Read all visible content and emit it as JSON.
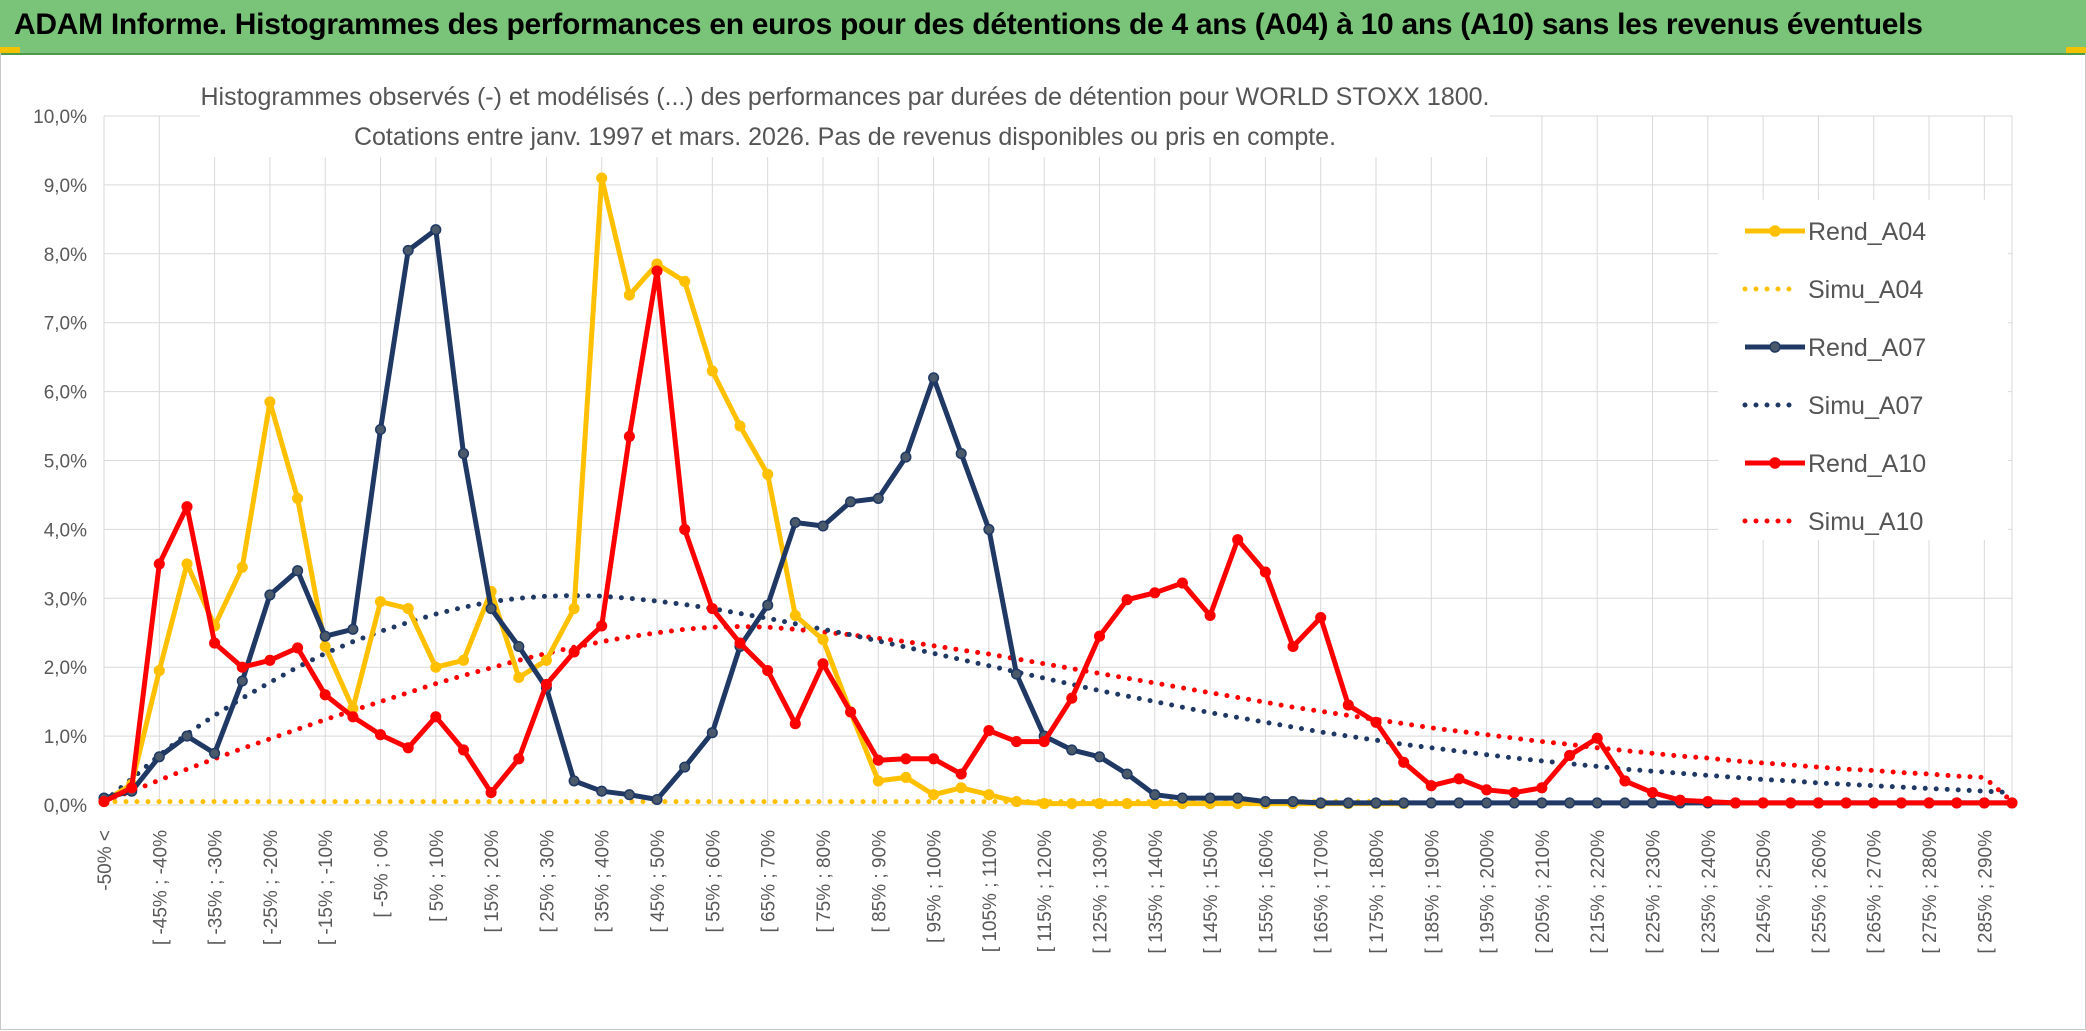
{
  "header": {
    "title": "ADAM Informe. Histogrammes des performances en euros pour des détentions de 4 ans (A04) à 10 ans (A10) sans les revenus éventuels"
  },
  "colors": {
    "header_bg": "#7ac47a",
    "a04": "#ffc000",
    "a07": "#1f3864",
    "a10": "#ff0000",
    "grid": "#d9d9d9"
  },
  "chart_data": {
    "type": "line",
    "title_line1": "Histogrammes observés (-) et modélisés (...) des performances par durées de détention pour WORLD STOXX 1800.",
    "title_line2": "Cotations entre janv. 1997 et mars. 2026. Pas de revenus disponibles ou pris en compte.",
    "xlabel": "",
    "ylabel": "",
    "ylim": [
      0,
      10
    ],
    "yticks": [
      "0,0%",
      "1,0%",
      "2,0%",
      "3,0%",
      "4,0%",
      "5,0%",
      "6,0%",
      "7,0%",
      "8,0%",
      "9,0%",
      "10,0%"
    ],
    "grid": true,
    "legend_position": "right",
    "x_tick_labels": [
      "-50% <",
      "[ -45% ; -40%",
      "[ -35% ; -30%",
      "[ -25% ; -20%",
      "[ -15% ; -10%",
      "[ -5% ; 0%",
      "[ 5% ; 10%",
      "[ 15% ; 20%",
      "[ 25% ; 30%",
      "[ 35% ; 40%",
      "[ 45% ; 50%",
      "[ 55% ; 60%",
      "[ 65% ; 70%",
      "[ 75% ; 80%",
      "[ 85% ; 90%",
      "[ 95% ; 100%",
      "[ 105% ; 110%",
      "[ 115% ; 120%",
      "[ 125% ; 130%",
      "[ 135% ; 140%",
      "[ 145% ; 150%",
      "[ 155% ; 160%",
      "[ 165% ; 170%",
      "[ 175% ; 180%",
      "[ 185% ; 190%",
      "[ 195% ; 200%",
      "[ 205% ; 210%",
      "[ 215% ; 220%",
      "[ 225% ; 230%",
      "[ 235% ; 240%",
      "[ 245% ; 250%",
      "[ 255% ; 260%",
      "[ 265% ; 270%",
      "[ 275% ; 280%",
      "[ 285% ; 290%"
    ],
    "x_count": 70,
    "series": [
      {
        "name": "Rend_A04",
        "style": "solid",
        "color": "#ffc000",
        "x": [
          0,
          1,
          2,
          3,
          4,
          5,
          6,
          7,
          8,
          9,
          10,
          11,
          12,
          13,
          14,
          15,
          16,
          17,
          18,
          19,
          20,
          21,
          22,
          23,
          24,
          25,
          26,
          27,
          28,
          29,
          30,
          31,
          32,
          33,
          34,
          35,
          36,
          37,
          38,
          39,
          40,
          41,
          42,
          43,
          44,
          45,
          46,
          47
        ],
        "values": [
          0.05,
          0.3,
          1.95,
          3.5,
          2.6,
          3.45,
          5.85,
          4.45,
          2.3,
          1.4,
          2.95,
          2.85,
          2.0,
          2.1,
          3.1,
          1.85,
          2.1,
          2.85,
          9.1,
          7.4,
          7.85,
          7.6,
          6.3,
          5.5,
          4.8,
          2.75,
          2.4,
          1.35,
          0.35,
          0.4,
          0.15,
          0.25,
          0.15,
          0.05,
          0.02,
          0.02,
          0.02,
          0.02,
          0.02,
          0.02,
          0.02,
          0.02,
          0.02,
          0.02,
          0.02,
          0.02,
          0.02,
          0.02
        ]
      },
      {
        "name": "Simu_A04",
        "style": "dotted",
        "color": "#ffc000",
        "x": [
          0,
          47
        ],
        "values": [
          0.05,
          0.05
        ]
      },
      {
        "name": "Rend_A07",
        "style": "solid",
        "color": "#1f3864",
        "x": [
          0,
          1,
          2,
          3,
          4,
          5,
          6,
          7,
          8,
          9,
          10,
          11,
          12,
          13,
          14,
          15,
          16,
          17,
          18,
          19,
          20,
          21,
          22,
          23,
          24,
          25,
          26,
          27,
          28,
          29,
          30,
          31,
          32,
          33,
          34,
          35,
          36,
          37,
          38,
          39,
          40,
          41,
          42,
          43,
          44,
          45,
          46,
          47,
          48,
          49,
          50,
          51,
          52,
          53,
          54,
          55,
          56,
          57,
          58,
          59,
          60,
          61,
          62,
          63,
          64,
          65,
          66,
          67,
          68,
          69
        ],
        "values": [
          0.1,
          0.2,
          0.7,
          1.0,
          0.75,
          1.8,
          3.05,
          3.4,
          2.45,
          2.55,
          5.45,
          8.05,
          8.35,
          5.1,
          2.85,
          2.3,
          1.7,
          0.35,
          0.2,
          0.15,
          0.08,
          0.55,
          1.05,
          2.3,
          2.9,
          4.1,
          4.05,
          4.4,
          4.45,
          5.05,
          6.2,
          5.1,
          4.0,
          1.9,
          1.0,
          0.8,
          0.7,
          0.45,
          0.15,
          0.1,
          0.1,
          0.1,
          0.05,
          0.05,
          0.03,
          0.03,
          0.03,
          0.03,
          0.03,
          0.03,
          0.03,
          0.03,
          0.03,
          0.03,
          0.03,
          0.03,
          0.03,
          0.03,
          0.03,
          0.03,
          0.03,
          0.03,
          0.03,
          0.03,
          0.03,
          0.03,
          0.03,
          0.03,
          0.03,
          0.03
        ]
      },
      {
        "name": "Simu_A07",
        "style": "dotted",
        "color": "#1f3864",
        "x": [
          0,
          1,
          2,
          3,
          4,
          5,
          6,
          7,
          8,
          9,
          10,
          11,
          12,
          13,
          14,
          15,
          16,
          17,
          18,
          19,
          20,
          21,
          22,
          23,
          24,
          25,
          26,
          27,
          28,
          29,
          30,
          31,
          32,
          33,
          34,
          35,
          36,
          37,
          38,
          39,
          40,
          41,
          42,
          43,
          44,
          45,
          46,
          47,
          48,
          49,
          50,
          51,
          52,
          53,
          54,
          55,
          56,
          57,
          58,
          59,
          60,
          61,
          62,
          63,
          64,
          65,
          66,
          67,
          68,
          69
        ],
        "values": [
          0.05,
          0.38,
          0.72,
          1.03,
          1.3,
          1.55,
          1.78,
          2.0,
          2.2,
          2.37,
          2.52,
          2.65,
          2.77,
          2.87,
          2.95,
          3.0,
          3.03,
          3.04,
          3.03,
          3.0,
          2.96,
          2.91,
          2.85,
          2.78,
          2.71,
          2.63,
          2.55,
          2.47,
          2.38,
          2.29,
          2.2,
          2.11,
          2.02,
          1.93,
          1.84,
          1.75,
          1.66,
          1.58,
          1.5,
          1.42,
          1.34,
          1.27,
          1.2,
          1.13,
          1.06,
          1.0,
          0.94,
          0.88,
          0.83,
          0.78,
          0.73,
          0.68,
          0.64,
          0.6,
          0.56,
          0.52,
          0.49,
          0.46,
          0.43,
          0.4,
          0.37,
          0.35,
          0.32,
          0.3,
          0.28,
          0.26,
          0.24,
          0.22,
          0.2,
          0.18
        ]
      },
      {
        "name": "Rend_A10",
        "style": "solid",
        "color": "#ff0000",
        "x": [
          0,
          1,
          2,
          3,
          4,
          5,
          6,
          7,
          8,
          9,
          10,
          11,
          12,
          13,
          14,
          15,
          16,
          17,
          18,
          19,
          20,
          21,
          22,
          23,
          24,
          25,
          26,
          27,
          28,
          29,
          30,
          31,
          32,
          33,
          34,
          35,
          36,
          37,
          38,
          39,
          40,
          41,
          42,
          43,
          44,
          45,
          46,
          47,
          48,
          49,
          50,
          51,
          52,
          53,
          54,
          55,
          56,
          57,
          58,
          59,
          60,
          61,
          62,
          63,
          64,
          65,
          66,
          67,
          68,
          69
        ],
        "values": [
          0.05,
          0.25,
          3.5,
          4.33,
          2.35,
          2.0,
          2.1,
          2.28,
          1.6,
          1.28,
          1.02,
          0.83,
          1.28,
          0.8,
          0.18,
          0.67,
          1.75,
          2.22,
          2.6,
          5.35,
          7.75,
          4.0,
          2.85,
          2.35,
          1.95,
          1.18,
          2.05,
          1.35,
          0.65,
          0.67,
          0.67,
          0.45,
          1.08,
          0.92,
          0.92,
          1.55,
          2.45,
          2.98,
          3.08,
          3.22,
          2.75,
          3.85,
          3.38,
          2.3,
          2.72,
          1.45,
          1.2,
          0.62,
          0.28,
          0.38,
          0.22,
          0.18,
          0.25,
          0.72,
          0.97,
          0.35,
          0.18,
          0.07,
          0.05,
          0.03,
          0.03,
          0.03,
          0.03,
          0.03,
          0.03,
          0.03,
          0.03,
          0.03,
          0.03,
          0.03
        ]
      },
      {
        "name": "Simu_A10",
        "style": "dotted",
        "color": "#ff0000",
        "x": [
          0,
          1,
          2,
          3,
          4,
          5,
          6,
          7,
          8,
          9,
          10,
          11,
          12,
          13,
          14,
          15,
          16,
          17,
          18,
          19,
          20,
          21,
          22,
          23,
          24,
          25,
          26,
          27,
          28,
          29,
          30,
          31,
          32,
          33,
          34,
          35,
          36,
          37,
          38,
          39,
          40,
          41,
          42,
          43,
          44,
          45,
          46,
          47,
          48,
          49,
          50,
          51,
          52,
          53,
          54,
          55,
          56,
          57,
          58,
          59,
          60,
          61,
          62,
          63,
          64,
          65,
          66,
          67,
          68,
          69
        ],
        "values": [
          0.05,
          0.2,
          0.36,
          0.52,
          0.67,
          0.82,
          0.96,
          1.1,
          1.24,
          1.37,
          1.5,
          1.63,
          1.76,
          1.88,
          1.99,
          2.1,
          2.2,
          2.29,
          2.37,
          2.44,
          2.5,
          2.55,
          2.58,
          2.59,
          2.58,
          2.55,
          2.51,
          2.47,
          2.42,
          2.37,
          2.31,
          2.25,
          2.19,
          2.12,
          2.05,
          1.98,
          1.91,
          1.84,
          1.77,
          1.7,
          1.63,
          1.56,
          1.49,
          1.42,
          1.36,
          1.3,
          1.24,
          1.18,
          1.12,
          1.07,
          1.02,
          0.97,
          0.92,
          0.88,
          0.83,
          0.79,
          0.75,
          0.71,
          0.68,
          0.64,
          0.61,
          0.58,
          0.55,
          0.52,
          0.5,
          0.47,
          0.45,
          0.42,
          0.4,
          0.05
        ]
      }
    ]
  }
}
